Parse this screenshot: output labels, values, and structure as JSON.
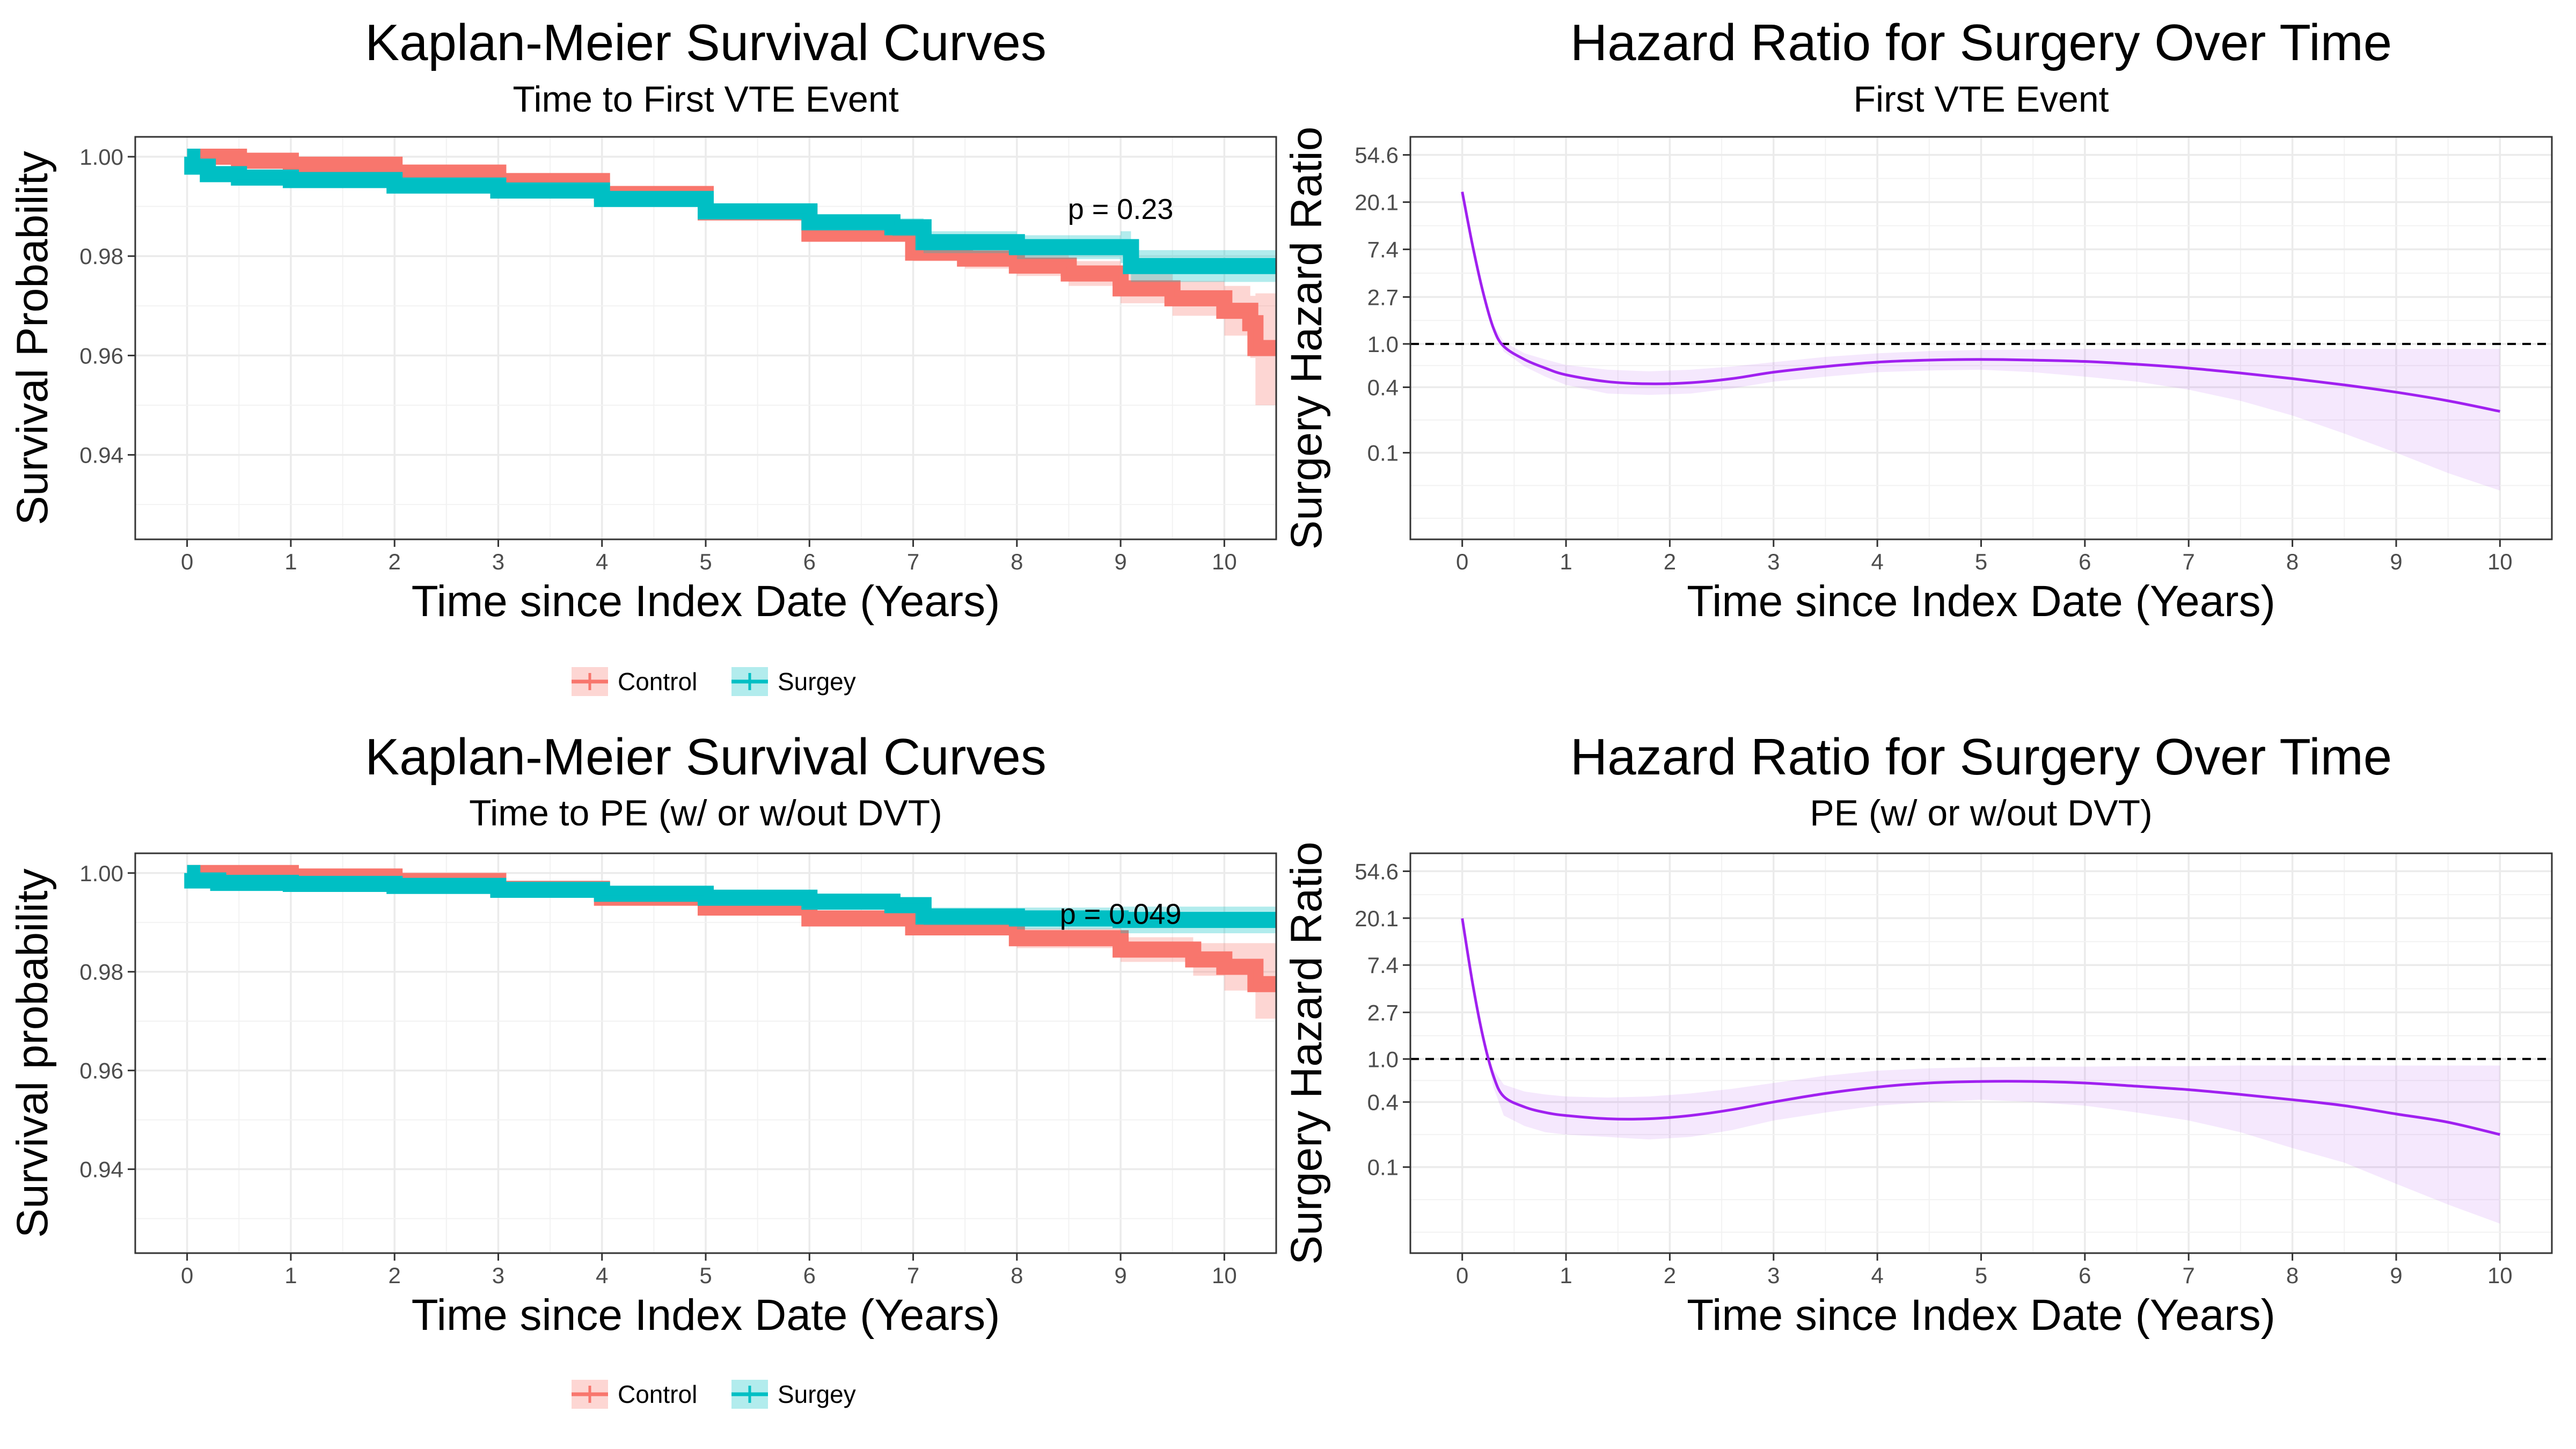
{
  "chart_data": [
    {
      "type": "line",
      "title": "Kaplan-Meier Survival Curves",
      "subtitle": "Time to First VTE Event",
      "xlabel": "Time since Index Date (Years)",
      "ylabel": "Survival Probability",
      "xlim": [
        -0.5,
        10.5
      ],
      "ylim": [
        0.923,
        1.004
      ],
      "x_ticks": [
        0,
        1,
        2,
        3,
        4,
        5,
        6,
        7,
        8,
        9,
        10
      ],
      "y_ticks": [
        0.94,
        0.96,
        0.98,
        1.0
      ],
      "y_tick_labels": [
        "0.94",
        "0.96",
        "0.98",
        "1.00"
      ],
      "grid": true,
      "annotation": {
        "text": "p = 0.23",
        "x": 9.0,
        "y": 0.9875
      },
      "legend": {
        "position": "bottom",
        "entries": [
          "Control",
          "Surgey"
        ]
      },
      "series": [
        {
          "name": "Control",
          "color": "#F8766D",
          "points": [
            [
              0,
              1.0
            ],
            [
              0.5,
              0.9992
            ],
            [
              1,
              0.9984
            ],
            [
              2,
              0.9968
            ],
            [
              3,
              0.9951
            ],
            [
              4,
              0.9925
            ],
            [
              5,
              0.9888
            ],
            [
              6,
              0.9845
            ],
            [
              7,
              0.9807
            ],
            [
              7.5,
              0.9795
            ],
            [
              8,
              0.9781
            ],
            [
              8.5,
              0.9765
            ],
            [
              9,
              0.9735
            ],
            [
              9.5,
              0.9715
            ],
            [
              10,
              0.969
            ],
            [
              10.25,
              0.9665
            ],
            [
              10.3,
              0.9615
            ],
            [
              10.5,
              0.9615
            ]
          ],
          "ci_upper": [
            1.0,
            0.9996,
            0.999,
            0.9976,
            0.996,
            0.9936,
            0.99,
            0.986,
            0.9824,
            0.9815,
            0.9802,
            0.979,
            0.9765,
            0.975,
            0.974,
            0.972,
            0.9725,
            0.9725
          ],
          "ci_lower": [
            1.0,
            0.9988,
            0.9978,
            0.996,
            0.9942,
            0.9914,
            0.9876,
            0.983,
            0.979,
            0.9775,
            0.976,
            0.974,
            0.9705,
            0.968,
            0.964,
            0.9595,
            0.95,
            0.95
          ]
        },
        {
          "name": "Surgey",
          "color": "#00BFC4",
          "points": [
            [
              0,
              1.0
            ],
            [
              0.05,
              0.998
            ],
            [
              0.2,
              0.9965
            ],
            [
              0.5,
              0.9958
            ],
            [
              1,
              0.9953
            ],
            [
              2,
              0.9942
            ],
            [
              3,
              0.9932
            ],
            [
              4,
              0.9915
            ],
            [
              5,
              0.989
            ],
            [
              6,
              0.9868
            ],
            [
              6.8,
              0.9858
            ],
            [
              7.1,
              0.9828
            ],
            [
              8,
              0.9818
            ],
            [
              9,
              0.9818
            ],
            [
              9.1,
              0.978
            ],
            [
              10.5,
              0.978
            ]
          ],
          "ci_upper": [
            1.0,
            0.9988,
            0.9975,
            0.9968,
            0.9963,
            0.9952,
            0.9943,
            0.9927,
            0.9904,
            0.9884,
            0.9876,
            0.985,
            0.9842,
            0.985,
            0.9812,
            0.982
          ],
          "ci_lower": [
            1.0,
            0.9972,
            0.9955,
            0.9948,
            0.9943,
            0.9932,
            0.9921,
            0.9903,
            0.9876,
            0.9852,
            0.984,
            0.9806,
            0.9794,
            0.9786,
            0.9748,
            0.9725
          ]
        }
      ]
    },
    {
      "type": "line",
      "title": "Hazard Ratio for Surgery Over Time",
      "subtitle": "First VTE Event",
      "xlabel": "Time since Index Date (Years)",
      "ylabel": "Surgery Hazard Ratio",
      "y_scale": "log",
      "xlim": [
        -0.5,
        10.5
      ],
      "ylim": [
        0.016,
        80
      ],
      "x_ticks": [
        0,
        1,
        2,
        3,
        4,
        5,
        6,
        7,
        8,
        9,
        10
      ],
      "y_ticks": [
        0.1,
        0.4,
        1.0,
        2.7,
        7.4,
        20.1,
        54.6
      ],
      "y_tick_labels": [
        "0.1",
        "0.4",
        "1.0",
        "2.7",
        "7.4",
        "20.1",
        "54.6"
      ],
      "grid": true,
      "reference_line": 1.0,
      "color": "#A020F0",
      "x": [
        0,
        0.1,
        0.2,
        0.3,
        0.4,
        0.6,
        0.8,
        1.0,
        1.4,
        1.8,
        2.2,
        2.6,
        3.0,
        3.5,
        4.0,
        4.5,
        5.0,
        5.5,
        6.0,
        6.5,
        7.0,
        7.5,
        8.0,
        8.5,
        9.0,
        9.5,
        10.0
      ],
      "hr": [
        25.0,
        8.0,
        3.0,
        1.4,
        0.95,
        0.72,
        0.6,
        0.52,
        0.45,
        0.43,
        0.44,
        0.48,
        0.55,
        0.62,
        0.68,
        0.71,
        0.72,
        0.71,
        0.69,
        0.65,
        0.6,
        0.54,
        0.48,
        0.42,
        0.36,
        0.3,
        0.24
      ],
      "ci_upper": [
        25.0,
        8.0,
        3.0,
        1.5,
        1.05,
        0.82,
        0.72,
        0.64,
        0.58,
        0.56,
        0.58,
        0.62,
        0.68,
        0.76,
        0.82,
        0.86,
        0.88,
        0.89,
        0.9,
        0.9,
        0.9,
        0.9,
        0.9,
        0.9,
        0.9,
        0.9,
        0.9
      ],
      "ci_lower": [
        25.0,
        8.0,
        3.0,
        1.3,
        0.85,
        0.62,
        0.5,
        0.42,
        0.35,
        0.34,
        0.35,
        0.39,
        0.45,
        0.5,
        0.55,
        0.57,
        0.58,
        0.55,
        0.5,
        0.45,
        0.38,
        0.3,
        0.22,
        0.15,
        0.1,
        0.065,
        0.045
      ]
    },
    {
      "type": "line",
      "title": "Kaplan-Meier Survival Curves",
      "subtitle": "Time to PE (w/ or w/out DVT)",
      "xlabel": "Time since Index Date (Years)",
      "ylabel": "Survival probability",
      "xlim": [
        -0.5,
        10.5
      ],
      "ylim": [
        0.923,
        1.004
      ],
      "x_ticks": [
        0,
        1,
        2,
        3,
        4,
        5,
        6,
        7,
        8,
        9,
        10
      ],
      "y_ticks": [
        0.94,
        0.96,
        0.98,
        1.0
      ],
      "y_tick_labels": [
        "0.94",
        "0.96",
        "0.98",
        "1.00"
      ],
      "grid": true,
      "annotation": {
        "text": "p = 0.049",
        "x": 9.0,
        "y": 0.9897
      },
      "legend": {
        "position": "bottom",
        "entries": [
          "Control",
          "Surgey"
        ]
      },
      "series": [
        {
          "name": "Control",
          "color": "#F8766D",
          "points": [
            [
              0,
              1.0
            ],
            [
              1,
              0.9993
            ],
            [
              2,
              0.9984
            ],
            [
              3,
              0.9968
            ],
            [
              4,
              0.995
            ],
            [
              5,
              0.993
            ],
            [
              6,
              0.9908
            ],
            [
              7,
              0.989
            ],
            [
              8,
              0.9868
            ],
            [
              9,
              0.9845
            ],
            [
              9.7,
              0.9825
            ],
            [
              10,
              0.981
            ],
            [
              10.3,
              0.9775
            ],
            [
              10.5,
              0.9775
            ]
          ],
          "ci_upper": [
            1.0,
            0.9997,
            0.999,
            0.9976,
            0.996,
            0.9942,
            0.9922,
            0.9906,
            0.9888,
            0.987,
            0.9858,
            0.9858,
            0.9858,
            0.9858
          ],
          "ci_lower": [
            1.0,
            0.9989,
            0.9978,
            0.996,
            0.994,
            0.9918,
            0.9894,
            0.9874,
            0.9848,
            0.982,
            0.9792,
            0.9762,
            0.9705,
            0.9705
          ]
        },
        {
          "name": "Surgey",
          "color": "#00BFC4",
          "points": [
            [
              0,
              1.0
            ],
            [
              0.05,
              0.9985
            ],
            [
              0.3,
              0.998
            ],
            [
              1,
              0.9978
            ],
            [
              2,
              0.9974
            ],
            [
              3,
              0.9966
            ],
            [
              4,
              0.9958
            ],
            [
              5,
              0.995
            ],
            [
              6,
              0.9942
            ],
            [
              6.8,
              0.9935
            ],
            [
              7.1,
              0.9912
            ],
            [
              8,
              0.9908
            ],
            [
              9,
              0.9905
            ],
            [
              10.5,
              0.9905
            ]
          ],
          "ci_upper": [
            1.0,
            0.9992,
            0.9988,
            0.9986,
            0.9982,
            0.9975,
            0.9968,
            0.9962,
            0.9955,
            0.995,
            0.993,
            0.993,
            0.9932,
            0.9935
          ],
          "ci_lower": [
            1.0,
            0.9978,
            0.9972,
            0.997,
            0.9966,
            0.9957,
            0.9948,
            0.9938,
            0.9929,
            0.992,
            0.9894,
            0.9886,
            0.9878,
            0.9875
          ]
        }
      ]
    },
    {
      "type": "line",
      "title": "Hazard Ratio for Surgery Over Time",
      "subtitle": "PE (w/ or w/out DVT)",
      "xlabel": "Time since Index Date (Years)",
      "ylabel": "Surgery Hazard Ratio",
      "y_scale": "log",
      "xlim": [
        -0.5,
        10.5
      ],
      "ylim": [
        0.016,
        80
      ],
      "x_ticks": [
        0,
        1,
        2,
        3,
        4,
        5,
        6,
        7,
        8,
        9,
        10
      ],
      "y_ticks": [
        0.1,
        0.4,
        1.0,
        2.7,
        7.4,
        20.1,
        54.6
      ],
      "y_tick_labels": [
        "0.1",
        "0.4",
        "1.0",
        "2.7",
        "7.4",
        "20.1",
        "54.6"
      ],
      "grid": true,
      "reference_line": 1.0,
      "color": "#A020F0",
      "x": [
        0,
        0.1,
        0.2,
        0.3,
        0.4,
        0.6,
        0.8,
        1.0,
        1.4,
        1.8,
        2.2,
        2.6,
        3.0,
        3.5,
        4.0,
        4.5,
        5.0,
        5.5,
        6.0,
        6.5,
        7.0,
        7.5,
        8.0,
        8.5,
        9.0,
        9.5,
        10.0
      ],
      "hr": [
        20.0,
        5.0,
        1.6,
        0.7,
        0.45,
        0.36,
        0.32,
        0.3,
        0.28,
        0.28,
        0.3,
        0.34,
        0.4,
        0.48,
        0.55,
        0.6,
        0.62,
        0.62,
        0.6,
        0.56,
        0.52,
        0.47,
        0.42,
        0.37,
        0.31,
        0.26,
        0.2
      ],
      "ci_upper": [
        20.0,
        5.0,
        1.6,
        0.8,
        0.58,
        0.5,
        0.47,
        0.45,
        0.44,
        0.45,
        0.48,
        0.53,
        0.6,
        0.7,
        0.78,
        0.82,
        0.84,
        0.85,
        0.85,
        0.86,
        0.86,
        0.87,
        0.87,
        0.87,
        0.87,
        0.87,
        0.87
      ],
      "ci_lower": [
        20.0,
        5.0,
        1.6,
        0.55,
        0.3,
        0.24,
        0.21,
        0.2,
        0.19,
        0.18,
        0.19,
        0.22,
        0.27,
        0.32,
        0.37,
        0.4,
        0.42,
        0.4,
        0.37,
        0.32,
        0.27,
        0.21,
        0.15,
        0.11,
        0.07,
        0.045,
        0.03
      ]
    }
  ]
}
